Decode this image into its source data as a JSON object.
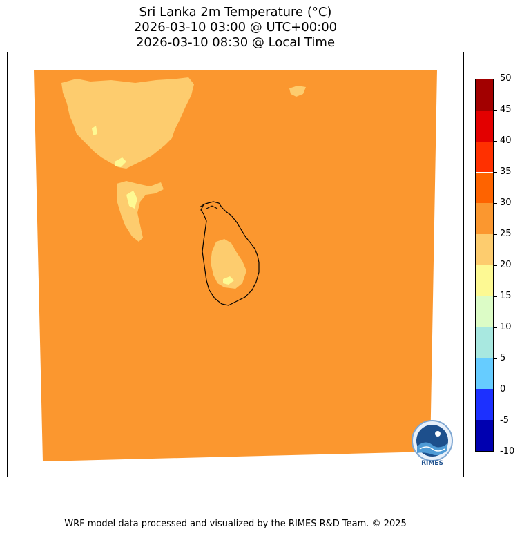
{
  "title": {
    "line1": "Sri Lanka 2m Temperature (°C)",
    "line2": "2026-03-10 03:00 @ UTC+00:00",
    "line3": "2026-03-10 08:30 @ Local Time"
  },
  "colorbar": {
    "unit": "°C",
    "levels": [
      {
        "from": -10,
        "to": -5,
        "color": "#0000b0"
      },
      {
        "from": -5,
        "to": 0,
        "color": "#1c30ff"
      },
      {
        "from": 0,
        "to": 5,
        "color": "#66ccff"
      },
      {
        "from": 5,
        "to": 10,
        "color": "#a8e8e0"
      },
      {
        "from": 10,
        "to": 15,
        "color": "#dcfcc6"
      },
      {
        "from": 15,
        "to": 20,
        "color": "#fdf993"
      },
      {
        "from": 20,
        "to": 25,
        "color": "#fdcc6e"
      },
      {
        "from": 25,
        "to": 30,
        "color": "#fb972f"
      },
      {
        "from": 30,
        "to": 35,
        "color": "#fe6300"
      },
      {
        "from": 35,
        "to": 40,
        "color": "#ff3000"
      },
      {
        "from": 40,
        "to": 45,
        "color": "#e30000"
      },
      {
        "from": 45,
        "to": 50,
        "color": "#a20000"
      }
    ],
    "tick_labels": [
      "50",
      "45",
      "40",
      "35",
      "30",
      "25",
      "20",
      "15",
      "10",
      "5",
      "0",
      "-5",
      "-10"
    ]
  },
  "map": {
    "background_field_color": "#fb972f",
    "warm_zone_color": "#fdcc6e",
    "hot_spot_color": "#fdf993",
    "coastline_color": "#000000"
  },
  "logo": {
    "text": "RIMES"
  },
  "footer": {
    "text": "WRF model data processed and visualized by the RIMES R&D Team. © 2025"
  }
}
